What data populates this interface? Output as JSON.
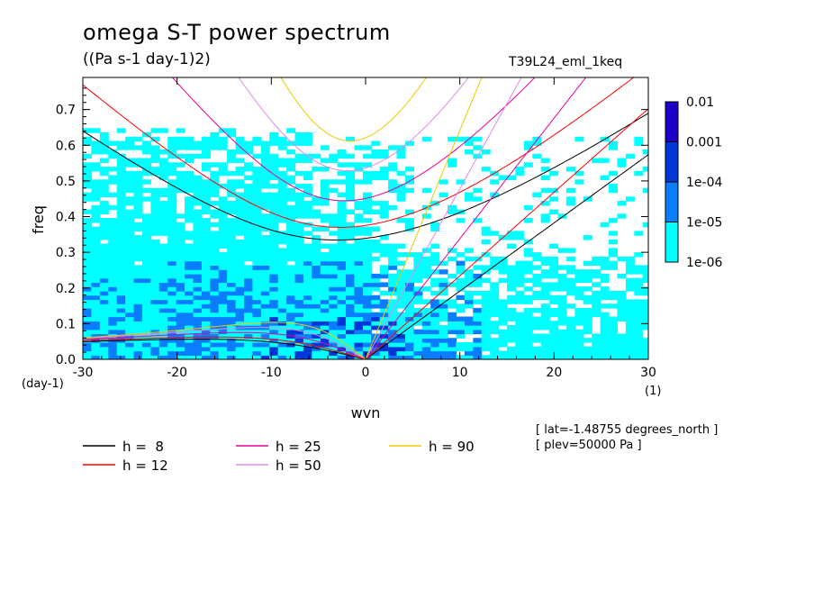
{
  "figure": {
    "title": "omega S-T power spectrum",
    "units": "((Pa s-1 day-1)2)",
    "run": "T39L24_eml_1keq",
    "info": [
      "[ lat=-1.48755 degrees_north ]",
      "[ plev=50000 Pa ]"
    ]
  },
  "colors": {
    "level1": "#00ffff",
    "level2": "#0a7cff",
    "level3": "#0036d8",
    "level4": "#1c00c8",
    "level5": "#4a10b8"
  },
  "chart_data": {
    "type": "heatmap",
    "title": "omega S-T power spectrum",
    "xlabel": "wvn",
    "ylabel": "freq",
    "x_unit_label": "(1)",
    "y_unit_label": "(day-1)",
    "xlim": [
      -30,
      30
    ],
    "ylim": [
      0,
      0.79
    ],
    "x_ticks": [
      -30,
      -20,
      -10,
      0,
      10,
      20,
      30
    ],
    "x_tick_labels": [
      "-30",
      "-20",
      "-10",
      "0",
      "10",
      "20",
      "30"
    ],
    "y_ticks": [
      0,
      0.1,
      0.2,
      0.3,
      0.4,
      0.5,
      0.6,
      0.7
    ],
    "y_tick_labels": [
      "0.0",
      "0.1",
      "0.2",
      "0.3",
      "0.4",
      "0.5",
      "0.6",
      "0.7"
    ],
    "colorbar": {
      "levels": [
        "1e-06",
        "1e-05",
        "1e-04",
        "0.001",
        "0.01"
      ],
      "colors": [
        "#00ffff",
        "#0a7cff",
        "#0036d8",
        "#1c00c8",
        "#4a10b8"
      ]
    },
    "dispersion_curves": [
      {
        "name": "h =  8",
        "h": 8,
        "color": "#000000"
      },
      {
        "name": "h = 12",
        "h": 12,
        "color": "#ff0000"
      },
      {
        "name": "h = 25",
        "h": 25,
        "color": "#e8009c"
      },
      {
        "name": "h = 50",
        "h": 50,
        "color": "#e088e8"
      },
      {
        "name": "h = 90",
        "h": 90,
        "color": "#f0c800"
      }
    ],
    "legend_position": "bottom-left"
  }
}
